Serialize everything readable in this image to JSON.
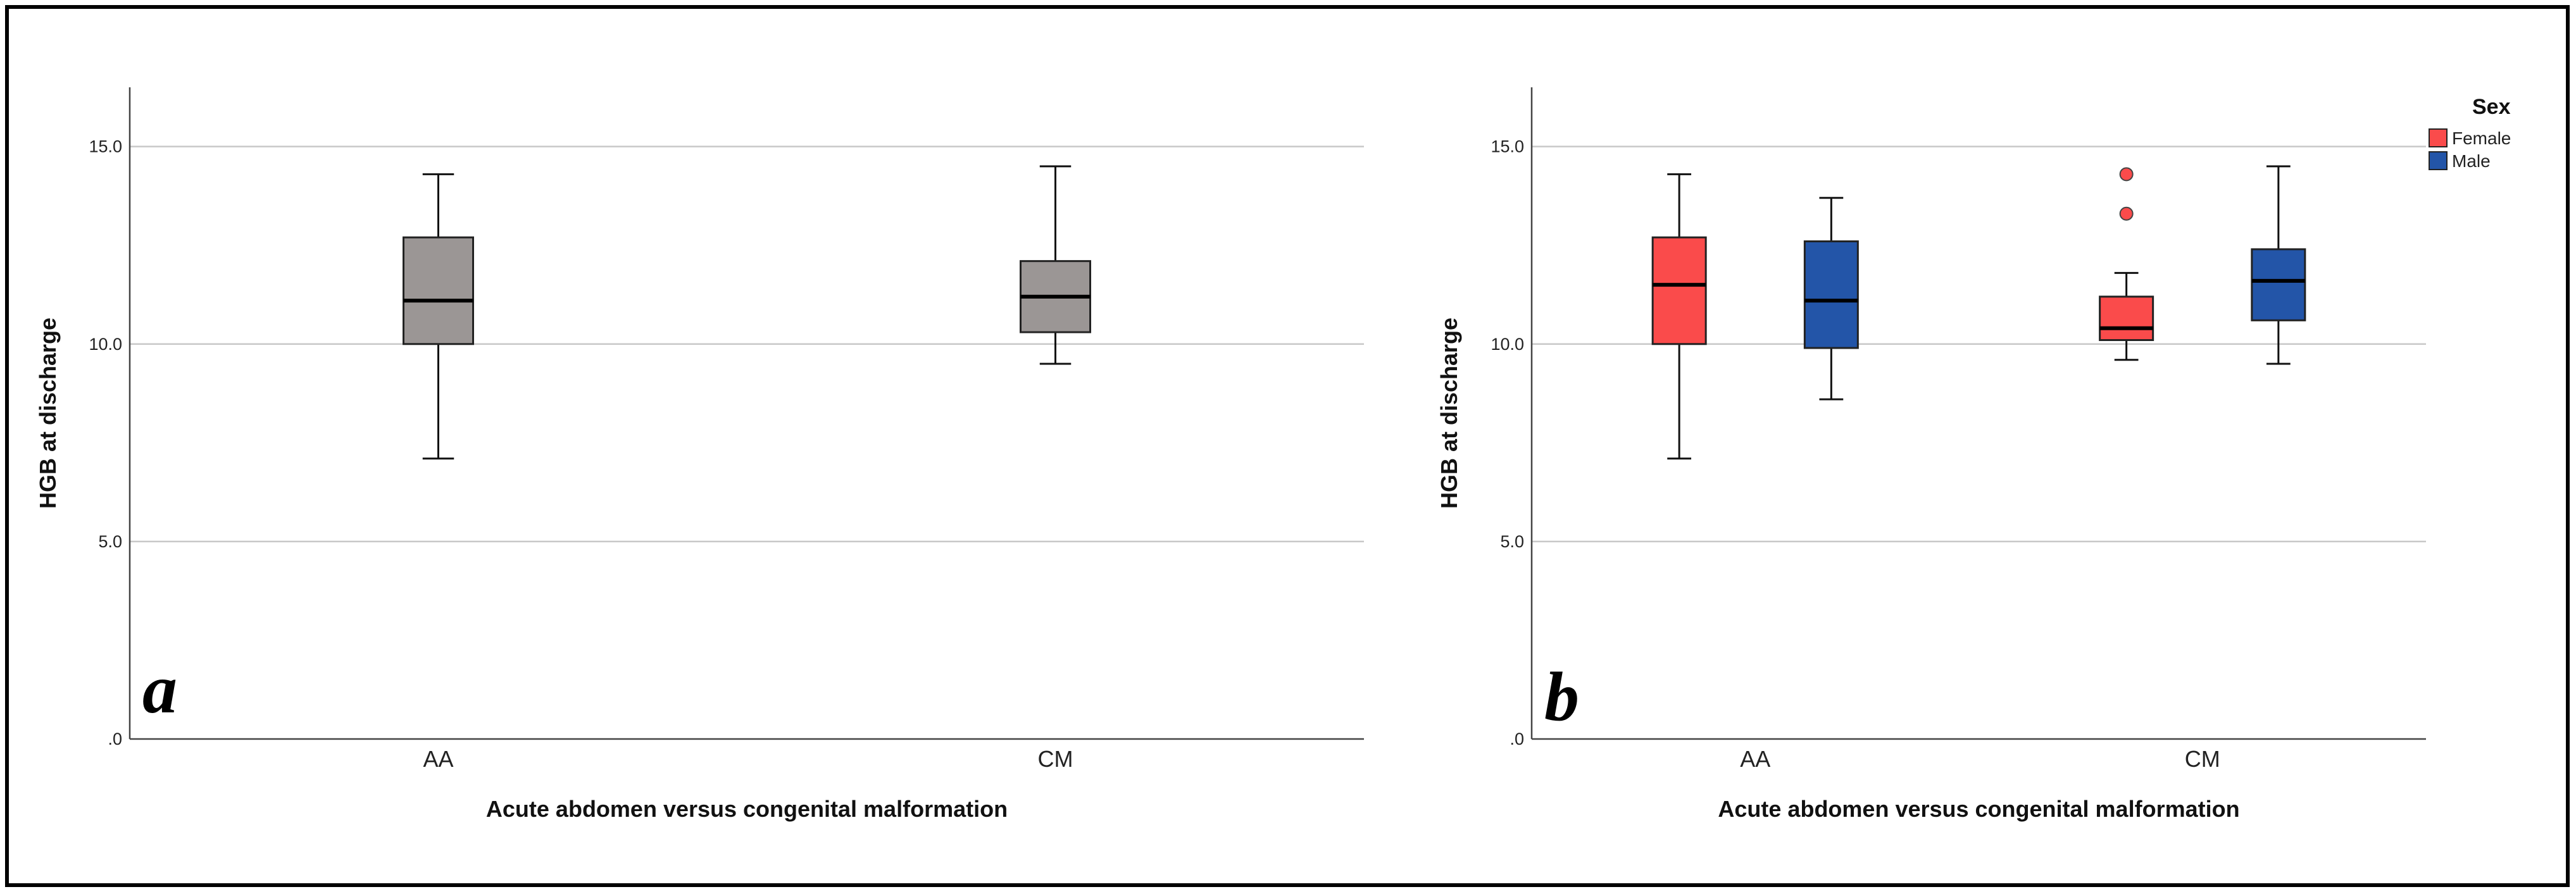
{
  "chart_data": [
    {
      "type": "boxplot",
      "panel_label": "a",
      "ylabel": "HGB at discharge",
      "xlabel": "Acute abdomen versus congenital malformation",
      "ylim": [
        0,
        16.5
      ],
      "yticks": [
        {
          "value": 0,
          "label": ".0"
        },
        {
          "value": 5,
          "label": "5.0"
        },
        {
          "value": 10,
          "label": "10.0"
        },
        {
          "value": 15,
          "label": "15.0"
        }
      ],
      "categories": [
        "AA",
        "CM"
      ],
      "boxes": [
        {
          "category": "AA",
          "min": 7.1,
          "q1": 10.0,
          "median": 11.1,
          "q3": 12.7,
          "max": 14.3,
          "outliers": []
        },
        {
          "category": "CM",
          "min": 9.5,
          "q1": 10.3,
          "median": 11.2,
          "q3": 12.1,
          "max": 14.5,
          "outliers": []
        }
      ],
      "color": "#9b9695"
    },
    {
      "type": "boxplot",
      "panel_label": "b",
      "ylabel": "HGB at discharge",
      "xlabel": "Acute abdomen versus congenital malformation",
      "ylim": [
        0,
        16.5
      ],
      "yticks": [
        {
          "value": 0,
          "label": ".0"
        },
        {
          "value": 5,
          "label": "5.0"
        },
        {
          "value": 10,
          "label": "10.0"
        },
        {
          "value": 15,
          "label": "15.0"
        }
      ],
      "categories": [
        "AA",
        "CM"
      ],
      "legend": {
        "title": "Sex",
        "position": "top-right"
      },
      "series": [
        {
          "name": "Female",
          "color": "#fa4b4b",
          "boxes": [
            {
              "category": "AA",
              "min": 7.1,
              "q1": 10.0,
              "median": 11.5,
              "q3": 12.7,
              "max": 14.3,
              "outliers": []
            },
            {
              "category": "CM",
              "min": 9.6,
              "q1": 10.1,
              "median": 10.4,
              "q3": 11.2,
              "max": 11.8,
              "outliers": [
                13.3,
                14.3
              ]
            }
          ]
        },
        {
          "name": "Male",
          "color": "#2355a8",
          "boxes": [
            {
              "category": "AA",
              "min": 8.6,
              "q1": 9.9,
              "median": 11.1,
              "q3": 12.6,
              "max": 13.7,
              "outliers": []
            },
            {
              "category": "CM",
              "min": 9.5,
              "q1": 10.6,
              "median": 11.6,
              "q3": 12.4,
              "max": 14.5,
              "outliers": []
            }
          ]
        }
      ]
    }
  ]
}
